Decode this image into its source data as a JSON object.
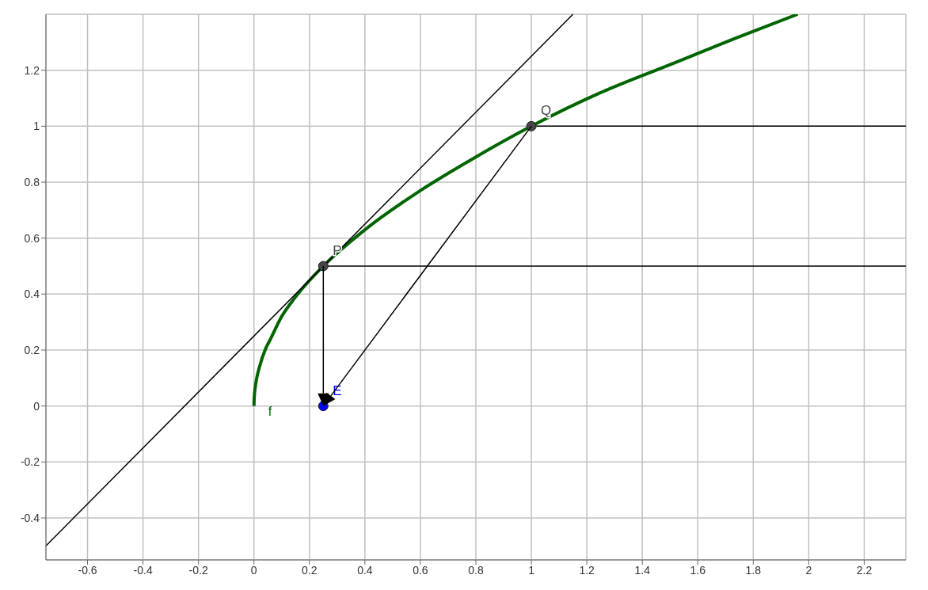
{
  "chart_data": {
    "type": "line",
    "xlim": [
      -0.75,
      2.35
    ],
    "ylim": [
      -0.55,
      1.4
    ],
    "xticks": [
      -0.6,
      -0.4,
      -0.2,
      0,
      0.2,
      0.4,
      0.6,
      0.8,
      1,
      1.2,
      1.4,
      1.6,
      1.8,
      2,
      2.2
    ],
    "yticks": [
      -0.4,
      -0.2,
      0,
      0.2,
      0.4,
      0.6,
      0.8,
      1,
      1.2
    ],
    "grid": true,
    "line_style": "solid",
    "series": [
      {
        "name": "f",
        "color": "#006400",
        "x": [
          0,
          0.001,
          0.005,
          0.01,
          0.02,
          0.04,
          0.06,
          0.1,
          0.15,
          0.25,
          0.4,
          0.6,
          0.8,
          1,
          1.25,
          1.5,
          1.75,
          1.96
        ],
        "values": [
          0,
          0.03,
          0.07,
          0.1,
          0.14,
          0.2,
          0.24,
          0.32,
          0.39,
          0.5,
          0.63,
          0.77,
          0.89,
          1,
          1.12,
          1.22,
          1.32,
          1.4
        ]
      },
      {
        "color": "#000000",
        "x": [
          -0.75,
          1.15
        ],
        "values": [
          -0.5,
          1.4
        ]
      },
      {
        "color": "#000000",
        "x": [
          0.25,
          2.35
        ],
        "values": [
          0.5,
          0.5
        ]
      },
      {
        "color": "#000000",
        "x": [
          1,
          2.35
        ],
        "values": [
          1,
          1
        ]
      },
      {
        "type": "scatter",
        "name": "P",
        "color": "#444444",
        "marker": "circle",
        "x": [
          0.25
        ],
        "values": [
          0.5
        ]
      },
      {
        "type": "scatter",
        "name": "Q",
        "color": "#444444",
        "marker": "circle",
        "x": [
          1
        ],
        "values": [
          1
        ]
      },
      {
        "type": "scatter",
        "name": "E",
        "color": "#0000ff",
        "marker": "circle",
        "x": [
          0.25
        ],
        "values": [
          0
        ]
      }
    ]
  }
}
